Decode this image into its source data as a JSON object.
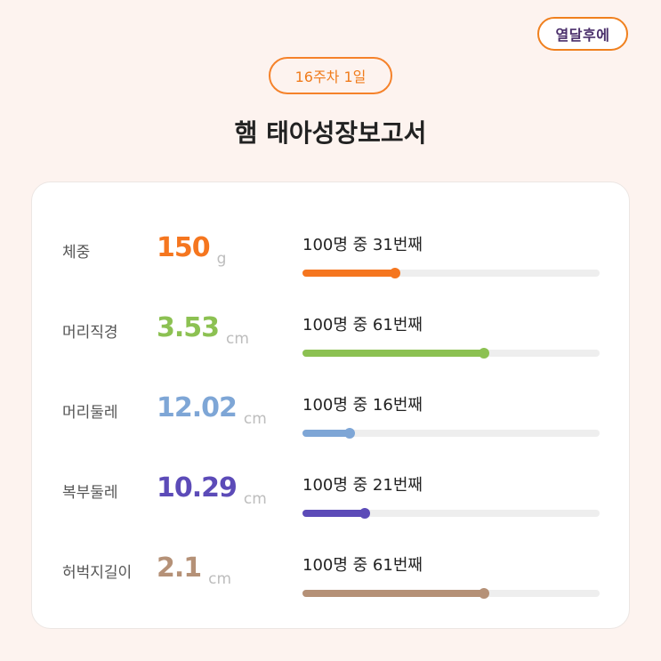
{
  "brand": {
    "label": "열달후에"
  },
  "header": {
    "week_label": "16주차 1일",
    "title": "햄 태아성장보고서"
  },
  "metrics": [
    {
      "label": "체중",
      "value": "150",
      "unit": "g",
      "rank_text": "100명 중 31번째",
      "rank": 31,
      "total": 100,
      "color": "#f5761f"
    },
    {
      "label": "머리직경",
      "value": "3.53",
      "unit": "cm",
      "rank_text": "100명 중 61번째",
      "rank": 61,
      "total": 100,
      "color": "#8cc152"
    },
    {
      "label": "머리둘레",
      "value": "12.02",
      "unit": "cm",
      "rank_text": "100명 중 16번째",
      "rank": 16,
      "total": 100,
      "color": "#7ea6d6"
    },
    {
      "label": "복부둘레",
      "value": "10.29",
      "unit": "cm",
      "rank_text": "100명 중 21번째",
      "rank": 21,
      "total": 100,
      "color": "#5c4bb8"
    },
    {
      "label": "허벅지길이",
      "value": "2.1",
      "unit": "cm",
      "rank_text": "100명 중 61번째",
      "rank": 61,
      "total": 100,
      "color": "#b59177"
    }
  ]
}
